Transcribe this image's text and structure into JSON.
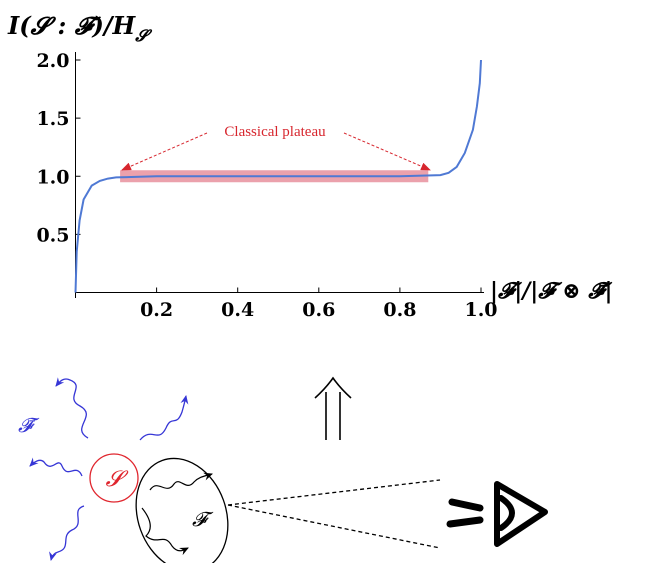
{
  "chart_data": {
    "type": "line",
    "title": "",
    "ylabel": "I(𝓢 : 𝓕)/H",
    "ylabel_subscript": "𝓢",
    "xlabel": "|𝓕|/|𝓕 ⊗ 𝓕̄|",
    "xlim": [
      0,
      1.0
    ],
    "ylim": [
      0,
      2.0
    ],
    "x_ticks": [
      "0.2",
      "0.4",
      "0.6",
      "0.8",
      "1.0"
    ],
    "y_ticks": [
      "0.5",
      "1.0",
      "1.5",
      "2.0"
    ],
    "series": [
      {
        "color": "#4f79d4",
        "x": [
          0.0,
          0.003,
          0.01,
          0.02,
          0.04,
          0.06,
          0.08,
          0.1,
          0.2,
          0.4,
          0.6,
          0.8,
          0.9,
          0.92,
          0.94,
          0.96,
          0.98,
          0.99,
          0.997,
          1.0
        ],
        "y": [
          0.0,
          0.35,
          0.62,
          0.8,
          0.92,
          0.96,
          0.98,
          0.99,
          1.0,
          1.0,
          1.0,
          1.0,
          1.01,
          1.03,
          1.08,
          1.2,
          1.4,
          1.6,
          1.8,
          2.0
        ]
      }
    ],
    "highlight": {
      "x_start": 0.11,
      "x_end": 0.87,
      "y": 1.0,
      "color": "#e8909e"
    },
    "annotations": [
      {
        "text": "Classical plateau",
        "color": "#d7262e"
      }
    ]
  },
  "diagram": {
    "system_label": "𝓢",
    "fragment_label": "𝓕",
    "environment_label": "𝓕̄",
    "implies_symbol": "⇑",
    "system_color": "#e0262e",
    "environment_color": "#3636d6"
  }
}
